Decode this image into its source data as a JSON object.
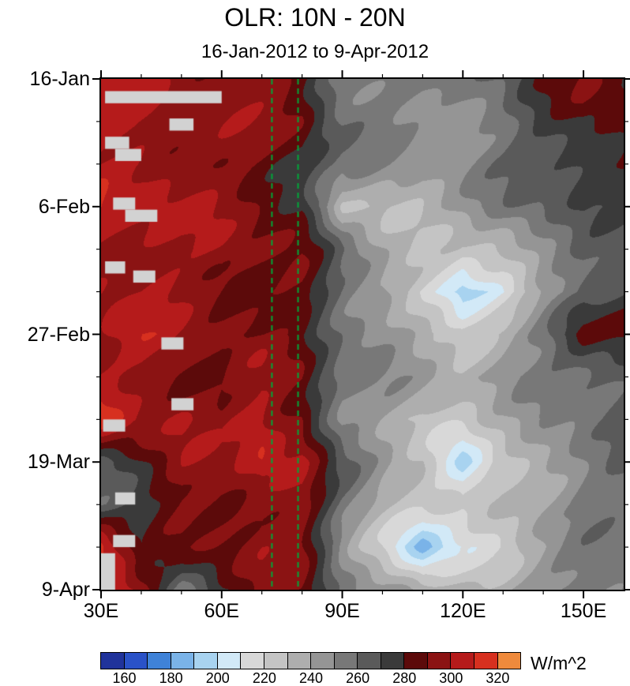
{
  "chart_data": {
    "type": "heatmap",
    "title": "OLR: 10N - 20N",
    "subtitle": "16-Jan-2012 to 9-Apr-2012",
    "units": "W/m^2",
    "x_range": [
      30,
      160
    ],
    "y_range_days": [
      0,
      84
    ],
    "x_tick_labels": [
      "30E",
      "60E",
      "90E",
      "120E",
      "150E"
    ],
    "x_tick_lons": [
      30,
      60,
      90,
      120,
      150
    ],
    "x_minor_lons": [
      40,
      50,
      70,
      80,
      100,
      110,
      130,
      140
    ],
    "y_tick_labels": [
      "16-Jan",
      "6-Feb",
      "27-Feb",
      "19-Mar",
      "9-Apr"
    ],
    "y_tick_day_offsets": [
      0,
      21,
      42,
      63,
      84
    ],
    "y_minor_day_offsets": [
      7,
      14,
      28,
      35,
      49,
      56,
      70,
      77
    ],
    "lon_points": [
      30,
      40,
      50,
      60,
      70,
      80,
      90,
      100,
      110,
      120,
      130,
      140,
      150,
      160
    ],
    "time_day_points": [
      0,
      7,
      14,
      21,
      28,
      35,
      42,
      49,
      56,
      63,
      70,
      77,
      84
    ],
    "values": [
      [
        300,
        298,
        295,
        300,
        295,
        285,
        260,
        255,
        250,
        255,
        262,
        275,
        288,
        284
      ],
      [
        305,
        300,
        298,
        295,
        290,
        288,
        262,
        252,
        248,
        252,
        258,
        272,
        282,
        286
      ],
      [
        300,
        305,
        300,
        292,
        288,
        280,
        255,
        245,
        240,
        248,
        255,
        265,
        280,
        282
      ],
      [
        310,
        305,
        298,
        295,
        290,
        282,
        228,
        232,
        238,
        245,
        252,
        262,
        270,
        265
      ],
      [
        305,
        300,
        295,
        298,
        292,
        285,
        255,
        240,
        230,
        225,
        235,
        255,
        265,
        260
      ],
      [
        300,
        295,
        300,
        295,
        290,
        288,
        260,
        245,
        215,
        185,
        210,
        240,
        255,
        272
      ],
      [
        295,
        305,
        298,
        290,
        285,
        280,
        262,
        250,
        235,
        230,
        240,
        252,
        282,
        285
      ],
      [
        298,
        300,
        295,
        288,
        298,
        290,
        255,
        245,
        240,
        235,
        245,
        255,
        265,
        270
      ],
      [
        312,
        298,
        300,
        292,
        305,
        295,
        250,
        240,
        230,
        225,
        230,
        245,
        255,
        260
      ],
      [
        270,
        285,
        295,
        290,
        308,
        300,
        260,
        245,
        235,
        195,
        225,
        245,
        255,
        260
      ],
      [
        265,
        275,
        290,
        295,
        300,
        295,
        255,
        235,
        220,
        215,
        230,
        240,
        250,
        255
      ],
      [
        315,
        270,
        285,
        290,
        295,
        290,
        250,
        225,
        185,
        210,
        225,
        240,
        250,
        255
      ],
      [
        322,
        295,
        260,
        280,
        290,
        288,
        255,
        240,
        230,
        235,
        240,
        250,
        255,
        260
      ]
    ],
    "levels": [
      150,
      160,
      170,
      180,
      190,
      200,
      210,
      220,
      230,
      240,
      250,
      260,
      270,
      280,
      290,
      300,
      310,
      320,
      330
    ],
    "colors": [
      "#20339b",
      "#2a52c8",
      "#3f82d8",
      "#7ab3e8",
      "#a8d3f0",
      "#d2e9f7",
      "#d8d8d8",
      "#c4c4c4",
      "#aeaeae",
      "#959595",
      "#787878",
      "#5a5a5a",
      "#3a3a3a",
      "#5c0a0a",
      "#8b1313",
      "#b51b1b",
      "#d7301f",
      "#ef8a3c"
    ],
    "colorbar_labels": [
      160,
      180,
      200,
      220,
      240,
      260,
      280,
      300,
      320
    ],
    "missing_color": "#d2d2d2",
    "missing_boxes": [
      {
        "lon": [
          31,
          60
        ],
        "day": [
          2,
          4
        ]
      },
      {
        "lon": [
          47,
          53
        ],
        "day": [
          6.5,
          8.5
        ]
      },
      {
        "lon": [
          31,
          37
        ],
        "day": [
          9.5,
          11.5
        ]
      },
      {
        "lon": [
          33.5,
          40
        ],
        "day": [
          11.5,
          13.5
        ]
      },
      {
        "lon": [
          33,
          38.5
        ],
        "day": [
          19.5,
          21.5
        ]
      },
      {
        "lon": [
          36,
          44
        ],
        "day": [
          21.5,
          23.5
        ]
      },
      {
        "lon": [
          31,
          36
        ],
        "day": [
          30,
          32
        ]
      },
      {
        "lon": [
          38,
          43.5
        ],
        "day": [
          31.5,
          33.5
        ]
      },
      {
        "lon": [
          45,
          50.5
        ],
        "day": [
          42.5,
          44.5
        ]
      },
      {
        "lon": [
          47.5,
          53
        ],
        "day": [
          52.5,
          54.5
        ]
      },
      {
        "lon": [
          30.5,
          36
        ],
        "day": [
          56,
          58
        ]
      },
      {
        "lon": [
          33.5,
          38.5
        ],
        "day": [
          68,
          70
        ]
      },
      {
        "lon": [
          33,
          38.5
        ],
        "day": [
          75,
          77
        ]
      },
      {
        "lon": [
          30,
          33.5
        ],
        "day": [
          78,
          84
        ]
      }
    ],
    "reference_lines": {
      "lons": [
        72.5,
        79
      ],
      "color": "#00a83a",
      "style": "dashed"
    }
  }
}
